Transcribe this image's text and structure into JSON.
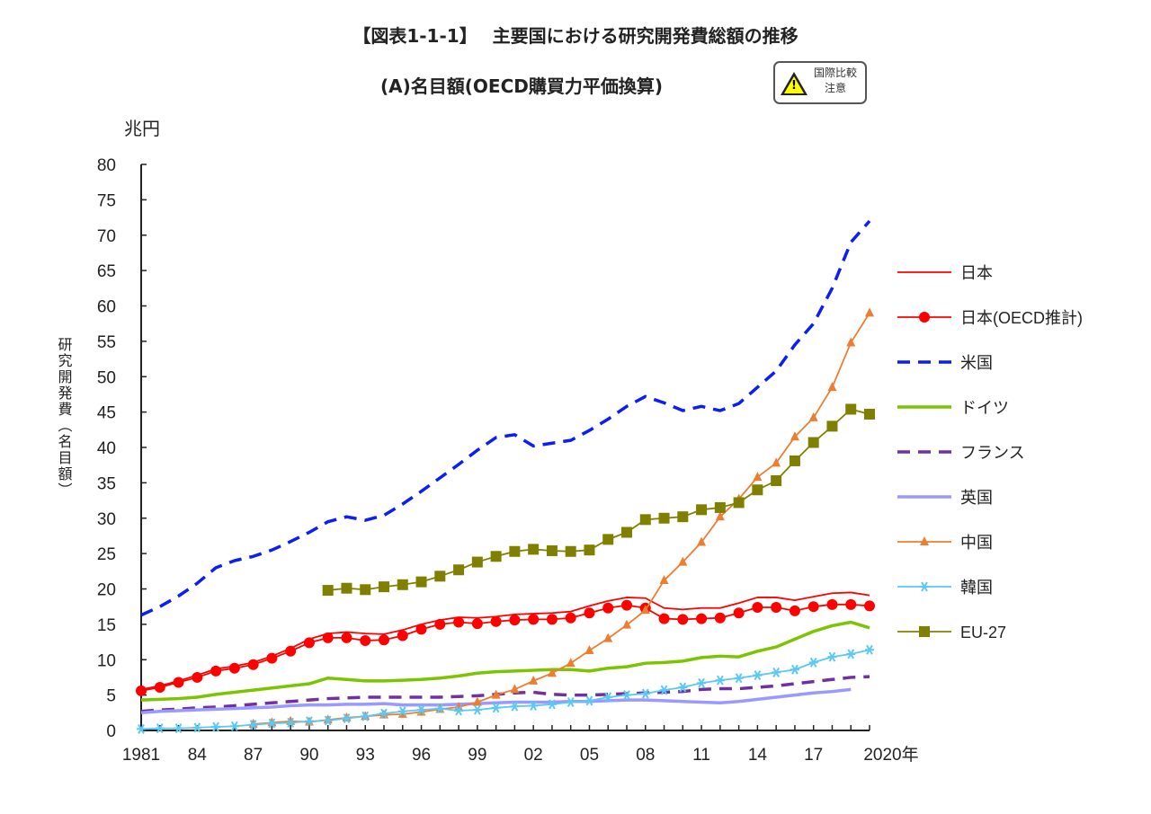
{
  "header": {
    "title": "【図表1-1-1】　 主要国における研究開発費総額の推移",
    "subtitle": "(A)名目額(OECD購買力平価換算)",
    "badge_line1": "国際比較",
    "badge_line2": "注意",
    "badge_icon": "warning-icon"
  },
  "chart_data": {
    "type": "line",
    "unit_label": "兆円",
    "ylabel": "研究開発費（名目額）",
    "ylim": [
      0,
      80
    ],
    "yticks": [
      0,
      5,
      10,
      15,
      20,
      25,
      30,
      35,
      40,
      45,
      50,
      55,
      60,
      65,
      70,
      75,
      80
    ],
    "xlim": [
      1981,
      2020
    ],
    "xtick_labels": [
      "1981",
      "84",
      "87",
      "90",
      "93",
      "96",
      "99",
      "02",
      "05",
      "08",
      "11",
      "14",
      "17",
      "2020年"
    ],
    "xtick_years": [
      1981,
      1984,
      1987,
      1990,
      1993,
      1996,
      1999,
      2002,
      2005,
      2008,
      2011,
      2014,
      2017,
      2020
    ],
    "legend": "right",
    "series": [
      {
        "name": "日本",
        "color": "#ff0000",
        "style": "solid-thin",
        "start": 1981,
        "values": [
          5.8,
          6.3,
          7.0,
          7.8,
          8.7,
          9.1,
          9.6,
          10.5,
          11.6,
          12.9,
          13.7,
          13.9,
          13.7,
          13.6,
          14.2,
          15.0,
          15.6,
          16.0,
          15.9,
          16.1,
          16.4,
          16.5,
          16.6,
          16.8,
          17.6,
          18.3,
          18.8,
          18.7,
          17.3,
          17.1,
          17.3,
          17.3,
          18.0,
          18.8,
          18.8,
          18.4,
          18.9,
          19.4,
          19.5,
          19.1
        ]
      },
      {
        "name": "日本(OECD推計)",
        "color": "#ff0000",
        "style": "circle",
        "start": 1981,
        "values": [
          5.6,
          6.1,
          6.8,
          7.5,
          8.4,
          8.8,
          9.3,
          10.2,
          11.2,
          12.4,
          13.1,
          13.1,
          12.7,
          12.8,
          13.4,
          14.3,
          15.0,
          15.3,
          15.1,
          15.4,
          15.6,
          15.7,
          15.7,
          15.9,
          16.6,
          17.3,
          17.7,
          17.3,
          15.8,
          15.7,
          15.8,
          15.9,
          16.6,
          17.4,
          17.4,
          16.9,
          17.5,
          17.8,
          17.8,
          17.6
        ]
      },
      {
        "name": "米国",
        "color": "#0a1ef5",
        "style": "dash",
        "start": 1981,
        "values": [
          16.3,
          17.5,
          19.0,
          20.8,
          23.0,
          24.0,
          24.6,
          25.5,
          26.7,
          28.0,
          29.5,
          30.2,
          29.7,
          30.4,
          32.0,
          33.8,
          35.7,
          37.6,
          39.6,
          41.4,
          41.8,
          40.2,
          40.6,
          41.0,
          42.4,
          44.0,
          45.8,
          47.2,
          46.3,
          45.2,
          45.8,
          45.2,
          46.2,
          48.5,
          50.8,
          54.5,
          57.5,
          62.5,
          69.0,
          72.0
        ]
      },
      {
        "name": "ドイツ",
        "color": "#7cc400",
        "style": "solid",
        "start": 1981,
        "values": [
          4.3,
          4.4,
          4.5,
          4.7,
          5.1,
          5.4,
          5.7,
          6.0,
          6.3,
          6.6,
          7.4,
          7.2,
          7.0,
          7.0,
          7.1,
          7.2,
          7.4,
          7.7,
          8.1,
          8.3,
          8.4,
          8.5,
          8.6,
          8.6,
          8.4,
          8.8,
          9.0,
          9.5,
          9.6,
          9.8,
          10.3,
          10.5,
          10.4,
          11.2,
          11.8,
          12.9,
          14.0,
          14.8,
          15.3,
          14.5
        ]
      },
      {
        "name": "フランス",
        "color": "#7030a0",
        "style": "dash",
        "start": 1981,
        "values": [
          2.7,
          2.9,
          3.0,
          3.2,
          3.3,
          3.5,
          3.7,
          3.9,
          4.1,
          4.3,
          4.5,
          4.6,
          4.7,
          4.7,
          4.7,
          4.7,
          4.7,
          4.8,
          4.9,
          5.1,
          5.3,
          5.4,
          5.1,
          5.0,
          5.0,
          5.1,
          5.2,
          5.3,
          5.4,
          5.5,
          5.8,
          5.9,
          5.9,
          6.1,
          6.3,
          6.6,
          6.9,
          7.2,
          7.5,
          7.6
        ]
      },
      {
        "name": "英国",
        "color": "#9999ff",
        "style": "solid",
        "start": 1981,
        "values": [
          2.5,
          2.7,
          2.8,
          2.9,
          3.0,
          3.1,
          3.2,
          3.3,
          3.5,
          3.6,
          3.6,
          3.7,
          3.7,
          3.8,
          3.6,
          3.6,
          3.6,
          3.7,
          3.8,
          3.9,
          4.0,
          4.0,
          4.0,
          4.1,
          4.1,
          4.2,
          4.3,
          4.3,
          4.2,
          4.1,
          4.0,
          3.9,
          4.1,
          4.4,
          4.7,
          5.0,
          5.3,
          5.5,
          5.8
        ]
      },
      {
        "name": "中国",
        "color": "#ed7d31",
        "style": "triangle",
        "start": 1987,
        "values": [
          0.9,
          1.1,
          1.3,
          1.2,
          1.5,
          1.8,
          2.0,
          2.2,
          2.3,
          2.6,
          3.0,
          3.3,
          4.0,
          5.0,
          5.8,
          7.0,
          8.1,
          9.5,
          11.3,
          13.0,
          14.9,
          17.0,
          21.2,
          23.8,
          26.6,
          30.2,
          32.7,
          35.8,
          37.8,
          41.5,
          44.2,
          48.5,
          54.8,
          59.0
        ]
      },
      {
        "name": "韓国",
        "color": "#5bc8f5",
        "style": "star",
        "start": 1981,
        "values": [
          0.2,
          0.3,
          0.3,
          0.4,
          0.5,
          0.6,
          0.8,
          1.0,
          1.1,
          1.3,
          1.4,
          1.7,
          2.0,
          2.4,
          2.7,
          2.9,
          3.1,
          2.8,
          2.9,
          3.2,
          3.4,
          3.5,
          3.7,
          4.0,
          4.2,
          4.7,
          5.0,
          5.2,
          5.7,
          6.1,
          6.7,
          7.1,
          7.4,
          7.8,
          8.2,
          8.6,
          9.6,
          10.4,
          10.8,
          11.4
        ]
      },
      {
        "name": "EU-27",
        "color": "#808000",
        "style": "square",
        "start": 1991,
        "values": [
          19.8,
          20.1,
          19.9,
          20.3,
          20.6,
          21.0,
          21.8,
          22.7,
          23.8,
          24.6,
          25.3,
          25.6,
          25.4,
          25.3,
          25.5,
          27.0,
          28.0,
          29.8,
          30.0,
          30.2,
          31.2,
          31.5,
          32.2,
          34.0,
          35.3,
          38.1,
          40.7,
          43.0,
          45.4,
          44.7
        ]
      }
    ]
  }
}
